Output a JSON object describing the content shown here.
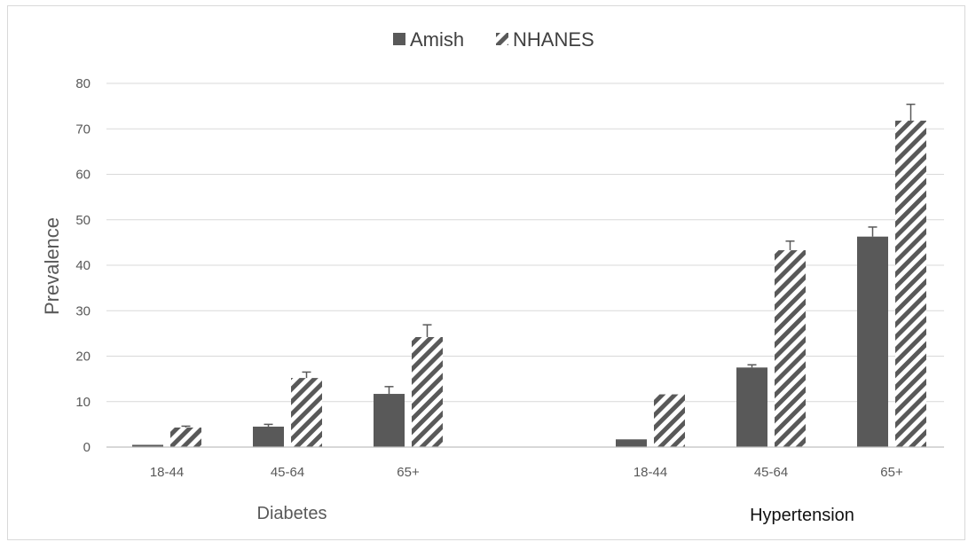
{
  "chart_data": {
    "type": "bar",
    "ylabel": "Prevalence",
    "ylim": [
      0,
      80
    ],
    "yticks": [
      "0",
      "10",
      "20",
      "30",
      "40",
      "50",
      "60",
      "70",
      "80"
    ],
    "grid": true,
    "legend_position": "top-center",
    "groups": [
      {
        "name": "Diabetes",
        "categories": [
          "18-44",
          "45-64",
          "65+"
        ],
        "series": [
          {
            "name": "Amish",
            "values": [
              0.5,
              4.5,
              11.7
            ],
            "errors": [
              0.2,
              0.5,
              1.6
            ]
          },
          {
            "name": "NHANES",
            "values": [
              4.3,
              15.2,
              24.2
            ],
            "errors": [
              0.3,
              1.3,
              2.7
            ]
          }
        ]
      },
      {
        "name": "Hypertension",
        "categories": [
          "18-44",
          "45-64",
          "65+"
        ],
        "series": [
          {
            "name": "Amish",
            "values": [
              1.7,
              17.5,
              46.3
            ],
            "errors": [
              0.1,
              0.6,
              2.1
            ]
          },
          {
            "name": "NHANES",
            "values": [
              11.6,
              43.3,
              71.8
            ],
            "errors": [
              0.1,
              2.0,
              3.6
            ]
          }
        ]
      }
    ]
  },
  "colors": {
    "amish": "#595959",
    "nhanes_stripe": "#595959",
    "nhanes_bg": "#ffffff",
    "grid": "#d9d9d9",
    "axis": "#bfbfbf"
  }
}
